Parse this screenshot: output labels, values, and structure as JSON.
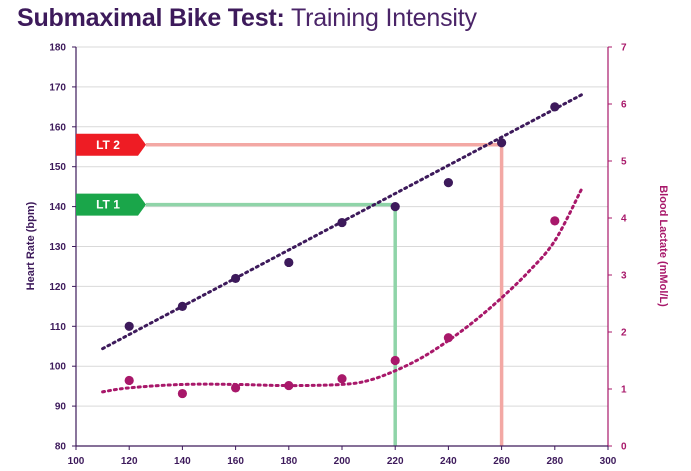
{
  "title": {
    "bold": "Submaximal Bike Test:",
    "regular": " Training Intensity"
  },
  "chart_data": {
    "type": "scatter",
    "x_axis": {
      "label": "",
      "range": [
        100,
        300
      ],
      "ticks": [
        100,
        120,
        140,
        160,
        180,
        200,
        220,
        240,
        260,
        280,
        300
      ]
    },
    "y_left": {
      "label": "Heart Rate (bpm)",
      "range": [
        80,
        180
      ],
      "ticks": [
        80,
        90,
        100,
        110,
        120,
        130,
        140,
        150,
        160,
        170,
        180
      ]
    },
    "y_right": {
      "label": "Blood Lactate (mMol/L)",
      "range": [
        0,
        7
      ],
      "ticks": [
        0,
        1,
        2,
        3,
        4,
        5,
        6,
        7
      ]
    },
    "grid": "horizontal",
    "series": [
      {
        "axis": "left",
        "color": "#3d1a5b",
        "x": [
          120,
          140,
          160,
          180,
          200,
          220,
          240,
          260,
          280
        ],
        "y": [
          110,
          115,
          122,
          126,
          136,
          140,
          146,
          156,
          165
        ],
        "trend": {
          "type": "linear",
          "from": [
            110,
            104.4
          ],
          "to": [
            290,
            168.0
          ]
        }
      },
      {
        "axis": "right",
        "color": "#a8186a",
        "x": [
          120,
          140,
          160,
          180,
          200,
          220,
          240,
          280
        ],
        "y": [
          1.15,
          0.92,
          1.02,
          1.06,
          1.18,
          1.5,
          1.9,
          3.95
        ],
        "trend": {
          "type": "curve",
          "x": [
            110,
            120,
            140,
            160,
            180,
            200,
            210,
            220,
            230,
            240,
            250,
            260,
            270,
            280,
            290
          ],
          "y": [
            0.95,
            1.02,
            1.08,
            1.08,
            1.06,
            1.08,
            1.15,
            1.32,
            1.55,
            1.85,
            2.2,
            2.6,
            3.05,
            3.6,
            4.5
          ]
        }
      }
    ],
    "thresholds": [
      {
        "label": "LT 1",
        "x": 220,
        "hr": 140.5,
        "color": "#8fd4a8",
        "flag_color": "#1aa64a"
      },
      {
        "label": "LT 2",
        "x": 260,
        "hr": 155.5,
        "color": "#f3a8a4",
        "flag_color": "#ee1c24"
      }
    ]
  }
}
